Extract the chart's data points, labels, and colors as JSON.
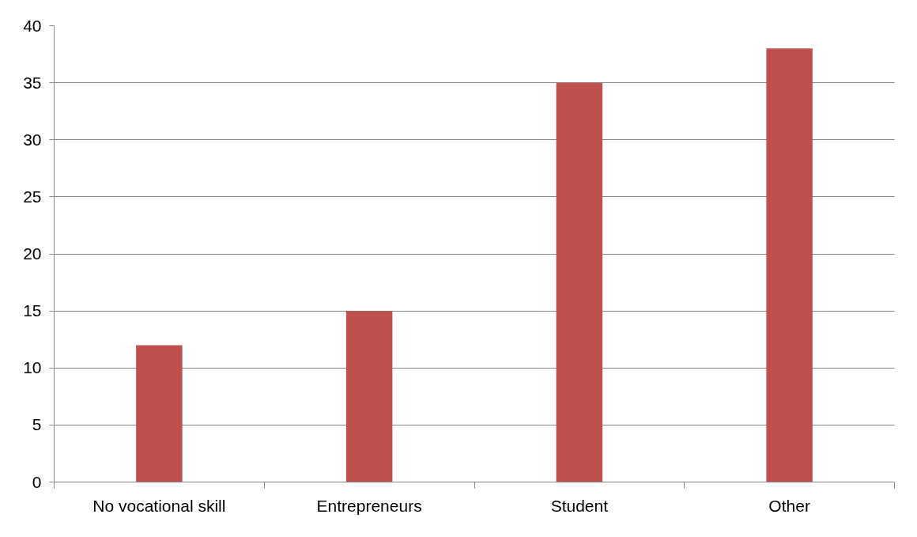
{
  "chart_data": {
    "type": "bar",
    "categories": [
      "No vocational skill",
      "Entrepreneurs",
      "Student",
      "Other"
    ],
    "values": [
      12,
      15,
      35,
      38
    ],
    "color": "#c0504d",
    "ylim": [
      0,
      40
    ],
    "yticks": [
      0,
      5,
      10,
      15,
      20,
      25,
      30,
      35,
      40
    ],
    "grid": "y"
  }
}
